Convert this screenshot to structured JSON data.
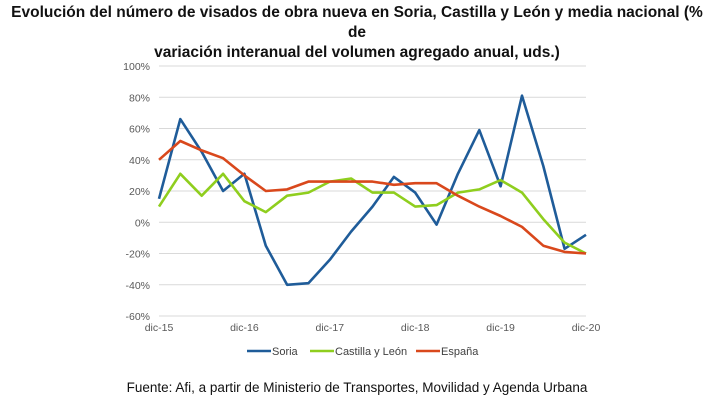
{
  "chart_data": {
    "type": "line",
    "title_line1": "Evolución del número de visados de obra nueva en Soria, Castilla y León y media nacional (% de",
    "title_line2": "variación interanual del volumen agregado anual, uds.)",
    "xlabel": "",
    "ylabel": "",
    "ylim": [
      -60,
      100
    ],
    "y_ticks": [
      "100%",
      "80%",
      "60%",
      "40%",
      "20%",
      "0%",
      "-20%",
      "-40%",
      "-60%"
    ],
    "y_tick_values": [
      100,
      80,
      60,
      40,
      20,
      0,
      -20,
      -40,
      -60
    ],
    "x_tick_labels": [
      "dic-15",
      "dic-16",
      "dic-17",
      "dic-18",
      "dic-19",
      "dic-20"
    ],
    "x": [
      "dic-15",
      "mar-16",
      "jun-16",
      "sep-16",
      "dic-16",
      "mar-17",
      "jun-17",
      "sep-17",
      "dic-17",
      "mar-18",
      "jun-18",
      "sep-18",
      "dic-18",
      "mar-19",
      "jun-19",
      "sep-19",
      "dic-19",
      "mar-20",
      "jun-20",
      "sep-20",
      "dic-20"
    ],
    "grid": true,
    "legend_position": "bottom",
    "series": [
      {
        "name": "Soria",
        "color": "#1f5c99",
        "values": [
          15,
          66,
          45,
          20,
          31,
          -15,
          -40,
          -39,
          -24,
          -6,
          10,
          29,
          19,
          -1.5,
          31,
          59,
          23,
          81,
          36,
          -17,
          -8
        ]
      },
      {
        "name": "Castilla y León",
        "color": "#8fce1e",
        "values": [
          10,
          31,
          17,
          31,
          13.5,
          6.5,
          17,
          19,
          26,
          28,
          19,
          19,
          10,
          11,
          19,
          21,
          27,
          19,
          2,
          -13,
          -20
        ]
      },
      {
        "name": "España",
        "color": "#d9481c",
        "values": [
          40,
          52,
          46,
          41,
          30,
          20,
          21,
          26,
          26,
          26,
          26,
          24,
          25,
          25,
          17,
          10,
          4,
          -3,
          -15,
          -19,
          -20
        ]
      }
    ],
    "source": "Fuente: Afi, a partir de Ministerio de Transportes, Movilidad y Agenda Urbana"
  }
}
